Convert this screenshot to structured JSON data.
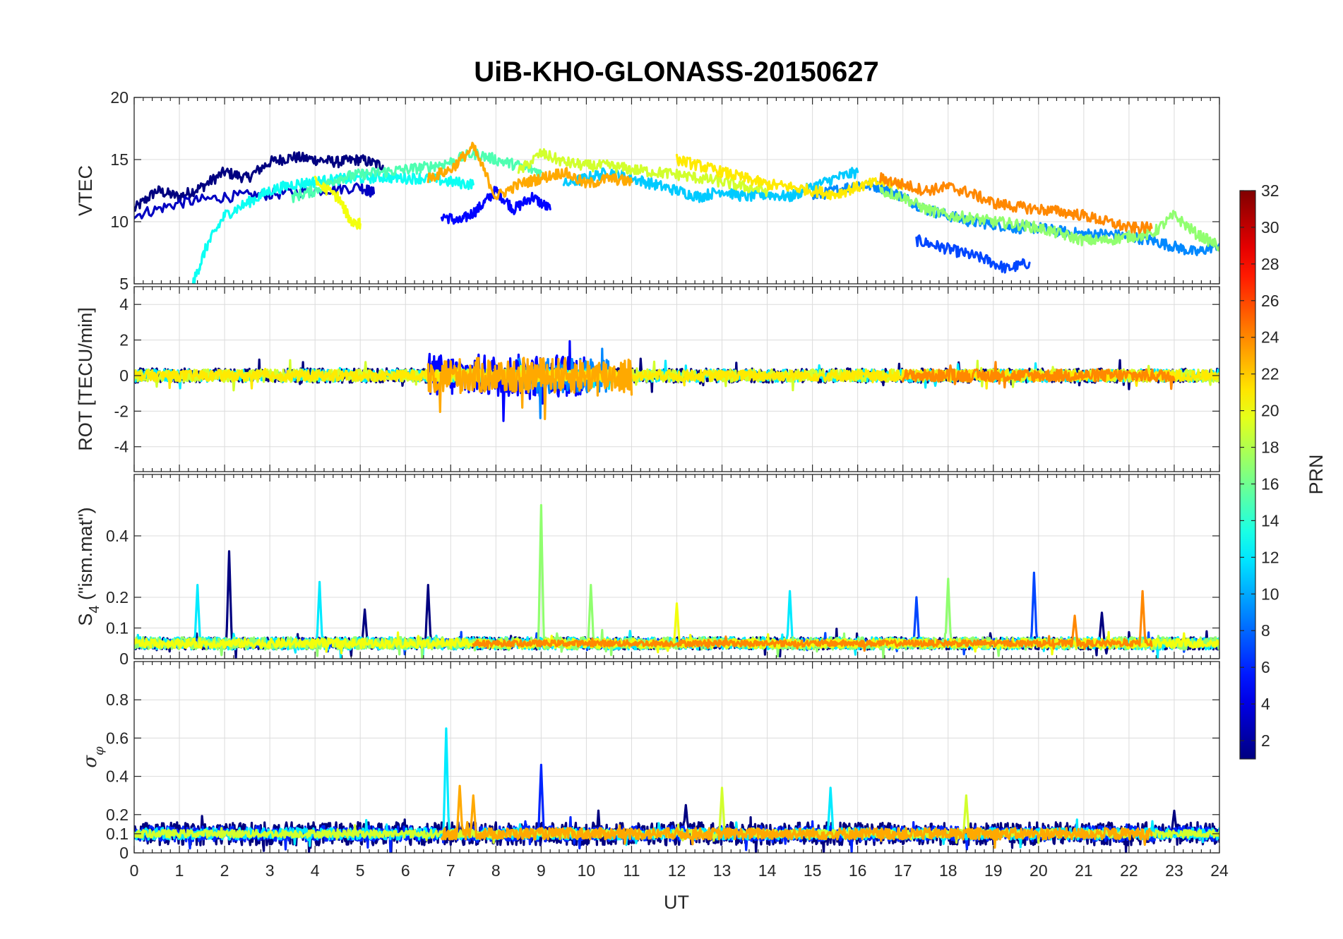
{
  "chart_data": {
    "type": "line",
    "title": "UiB-KHO-GLONASS-20150627",
    "xlabel": "UT",
    "x_ticks": [
      "0",
      "1",
      "2",
      "3",
      "4",
      "5",
      "6",
      "7",
      "8",
      "9",
      "10",
      "11",
      "12",
      "13",
      "14",
      "15",
      "16",
      "17",
      "18",
      "19",
      "20",
      "21",
      "22",
      "23",
      "24"
    ],
    "xlim": [
      0,
      24
    ],
    "grid": true,
    "colorbar": {
      "label": "PRN",
      "colormap": "jet",
      "range": [
        1,
        32
      ],
      "ticks": [
        "2",
        "4",
        "6",
        "8",
        "10",
        "12",
        "14",
        "16",
        "18",
        "20",
        "22",
        "24",
        "26",
        "28",
        "30",
        "32"
      ],
      "tick_values": [
        2,
        4,
        6,
        8,
        10,
        12,
        14,
        16,
        18,
        20,
        22,
        24,
        26,
        28,
        30,
        32
      ]
    },
    "panels": [
      {
        "id": "vtec",
        "ylabel": "VTEC",
        "ylim": [
          5,
          20
        ],
        "y_ticks": [
          "5",
          "10",
          "15",
          "20"
        ],
        "y_tick_values": [
          5,
          10,
          15,
          20
        ],
        "kind": "level",
        "series": [
          {
            "prn": 1,
            "x": [
              0,
              0.5,
              1,
              1.5,
              2,
              2.5,
              3,
              3.5,
              4,
              4.5,
              5,
              5.5
            ],
            "y": [
              11,
              12.5,
              12,
              12.8,
              14,
              13.5,
              14.8,
              15.2,
              15,
              14.8,
              15,
              14.5
            ]
          },
          {
            "prn": 3,
            "x": [
              0,
              1,
              2,
              3,
              4,
              5,
              5.3
            ],
            "y": [
              10.5,
              11.5,
              12,
              12.2,
              12.5,
              12.8,
              12.3
            ]
          },
          {
            "prn": 5,
            "x": [
              6.8,
              7.2,
              7.6,
              8,
              8.4,
              8.8,
              9.2
            ],
            "y": [
              10.5,
              10,
              11,
              12.5,
              11,
              12,
              11
            ]
          },
          {
            "prn": 7,
            "x": [
              17.3,
              17.8,
              18.3,
              18.8,
              19.3,
              19.8
            ],
            "y": [
              8.5,
              8,
              7.5,
              7,
              6.2,
              6.7
            ]
          },
          {
            "prn": 9,
            "x": [
              15,
              15.5,
              16,
              16.5,
              17,
              17.5,
              18,
              18.5,
              19,
              19.5,
              20,
              20.5,
              21,
              21.5,
              22,
              22.5,
              23,
              23.5,
              24
            ],
            "y": [
              12,
              12.5,
              13,
              12.8,
              12,
              11,
              10.5,
              10,
              9.8,
              9.5,
              9.5,
              9.2,
              9,
              9,
              8.8,
              8.5,
              8,
              7.5,
              8.2
            ]
          },
          {
            "prn": 11,
            "x": [
              9.5,
              10,
              10.5,
              11,
              11.5,
              12,
              12.5,
              13,
              13.5,
              14,
              14.5,
              15,
              15.5,
              16
            ],
            "y": [
              13,
              13.5,
              14,
              13.5,
              13,
              12.5,
              12,
              12.5,
              12,
              12.2,
              12,
              12.8,
              13.5,
              14
            ]
          },
          {
            "prn": 13,
            "x": [
              1.3,
              1.6,
              2,
              2.5,
              3,
              3.5,
              4,
              4.5,
              5,
              5.5,
              6,
              6.5,
              7,
              7.5
            ],
            "y": [
              5,
              8,
              10.5,
              11.5,
              12.5,
              13,
              13.2,
              13.4,
              13.5,
              13.6,
              13.5,
              13.5,
              13.2,
              13
            ]
          },
          {
            "prn": 15,
            "x": [
              3.5,
              4,
              4.5,
              5,
              5.5,
              6,
              6.5,
              7,
              7.5,
              8,
              8.5,
              9
            ],
            "y": [
              12,
              12.5,
              13.5,
              13.8,
              14,
              14.2,
              14.4,
              14.8,
              15.5,
              15,
              14.5,
              14
            ]
          },
          {
            "prn": 17,
            "x": [
              16.5,
              17,
              17.5,
              18,
              18.5,
              19,
              19.5,
              20,
              20.5,
              21,
              21.5,
              22,
              22.5,
              23,
              23.5,
              24
            ],
            "y": [
              12.5,
              12,
              11,
              10.5,
              10.3,
              10,
              9.8,
              9.5,
              9,
              8.5,
              8.5,
              8.8,
              9,
              10.5,
              9,
              8
            ]
          },
          {
            "prn": 19,
            "x": [
              8.5,
              9,
              9.5,
              10,
              10.5,
              11,
              11.5,
              12,
              12.5,
              13,
              13.5,
              14
            ],
            "y": [
              14,
              15.5,
              14.8,
              14.5,
              14.5,
              14.2,
              14,
              13.8,
              13.5,
              13.2,
              12.8,
              12.5
            ]
          },
          {
            "prn": 20,
            "x": [
              4,
              4.5,
              4.8,
              5
            ],
            "y": [
              13.2,
              12,
              10,
              9.8
            ]
          },
          {
            "prn": 21,
            "x": [
              12,
              12.5,
              13,
              13.5,
              14,
              14.5,
              15,
              15.5,
              16,
              16.5,
              17
            ],
            "y": [
              15,
              14.5,
              14,
              13.5,
              13,
              12.8,
              12.5,
              12.2,
              12.8,
              13.2,
              13
            ]
          },
          {
            "prn": 23,
            "x": [
              6.5,
              7,
              7.5,
              8,
              8.5,
              9,
              9.5,
              10,
              10.5,
              11
            ],
            "y": [
              13.5,
              14.2,
              16,
              12,
              13,
              13.5,
              14,
              13,
              13.5,
              13.2
            ]
          },
          {
            "prn": 24,
            "x": [
              16.5,
              17,
              17.5,
              18,
              18.5,
              19,
              19.5,
              20,
              20.5,
              21,
              21.5,
              22,
              22.5
            ],
            "y": [
              13.5,
              13,
              12.5,
              12.8,
              12.3,
              11.5,
              11.2,
              11,
              10.8,
              10.5,
              10,
              9.5,
              9.5
            ]
          }
        ]
      },
      {
        "id": "rot",
        "ylabel": "ROT [TECU/min]",
        "ylim": [
          -5.4,
          5
        ],
        "y_ticks": [
          "-4",
          "-2",
          "0",
          "2",
          "4"
        ],
        "y_tick_values": [
          -4,
          -2,
          0,
          2,
          4
        ],
        "kind": "noise",
        "baseline": 0,
        "series": [
          {
            "prn": 1,
            "x": [
              0,
              24
            ],
            "amp": 0.4
          },
          {
            "prn": 5,
            "x": [
              6.5,
              10
            ],
            "amp": 1.2
          },
          {
            "prn": 9,
            "x": [
              8.5,
              10.5
            ],
            "amp": 1.0
          },
          {
            "prn": 12,
            "x": [
              0,
              24
            ],
            "amp": 0.35
          },
          {
            "prn": 19,
            "x": [
              0,
              24
            ],
            "amp": 0.35
          },
          {
            "prn": 21,
            "x": [
              0,
              24
            ],
            "amp": 0.3
          },
          {
            "prn": 23,
            "x": [
              6.5,
              11
            ],
            "amp": 1.0
          },
          {
            "prn": 24,
            "x": [
              17,
              23
            ],
            "amp": 0.35
          }
        ]
      },
      {
        "id": "s4",
        "ylabel": "S₄ (\"ism.mat\")",
        "ylim": [
          0,
          0.6
        ],
        "y_ticks": [
          "0",
          "0.1",
          "0.2",
          "0.4"
        ],
        "y_tick_values": [
          0,
          0.1,
          0.2,
          0.4
        ],
        "kind": "noise",
        "baseline": 0.05,
        "series": [
          {
            "prn": 1,
            "x": [
              0,
              24
            ],
            "amp": 0.02,
            "spikes": [
              [
                2.1,
                0.35
              ],
              [
                5.1,
                0.16
              ],
              [
                6.5,
                0.24
              ],
              [
                21.4,
                0.15
              ]
            ]
          },
          {
            "prn": 7,
            "x": [
              0,
              24
            ],
            "amp": 0.015,
            "spikes": [
              [
                17.3,
                0.2
              ],
              [
                19.9,
                0.28
              ]
            ]
          },
          {
            "prn": 12,
            "x": [
              0,
              24
            ],
            "amp": 0.02,
            "spikes": [
              [
                1.4,
                0.24
              ],
              [
                4.1,
                0.25
              ],
              [
                14.5,
                0.22
              ]
            ]
          },
          {
            "prn": 17,
            "x": [
              0,
              24
            ],
            "amp": 0.02,
            "spikes": [
              [
                9,
                0.5
              ],
              [
                10.1,
                0.24
              ],
              [
                18,
                0.26
              ]
            ]
          },
          {
            "prn": 20,
            "x": [
              0,
              24
            ],
            "amp": 0.015,
            "spikes": [
              [
                12,
                0.18
              ]
            ]
          },
          {
            "prn": 24,
            "x": [
              7.5,
              22.5
            ],
            "amp": 0.01,
            "spikes": [
              [
                22.3,
                0.22
              ],
              [
                20.8,
                0.14
              ]
            ]
          }
        ]
      },
      {
        "id": "sigma_phi",
        "ylabel": "σφ",
        "ylim": [
          0,
          1
        ],
        "y_ticks": [
          "0",
          "0.1",
          "0.2",
          "0.4",
          "0.6",
          "0.8"
        ],
        "y_tick_values": [
          0,
          0.1,
          0.2,
          0.4,
          0.6,
          0.8
        ],
        "kind": "noise",
        "baseline": 0.1,
        "series": [
          {
            "prn": 1,
            "x": [
              0,
              24
            ],
            "amp": 0.06,
            "spikes": [
              [
                12.2,
                0.25
              ],
              [
                23,
                0.22
              ]
            ]
          },
          {
            "prn": 6,
            "x": [
              0,
              24
            ],
            "amp": 0.04,
            "spikes": [
              [
                9,
                0.46
              ]
            ]
          },
          {
            "prn": 12,
            "x": [
              0,
              24
            ],
            "amp": 0.03,
            "spikes": [
              [
                6.9,
                0.65
              ],
              [
                15.4,
                0.34
              ]
            ]
          },
          {
            "prn": 19,
            "x": [
              0,
              24
            ],
            "amp": 0.02,
            "spikes": [
              [
                13,
                0.34
              ],
              [
                18.4,
                0.3
              ]
            ]
          },
          {
            "prn": 23,
            "x": [
              6.8,
              22.5
            ],
            "amp": 0.03,
            "spikes": [
              [
                7.2,
                0.35
              ],
              [
                7.5,
                0.3
              ]
            ]
          }
        ]
      }
    ]
  }
}
